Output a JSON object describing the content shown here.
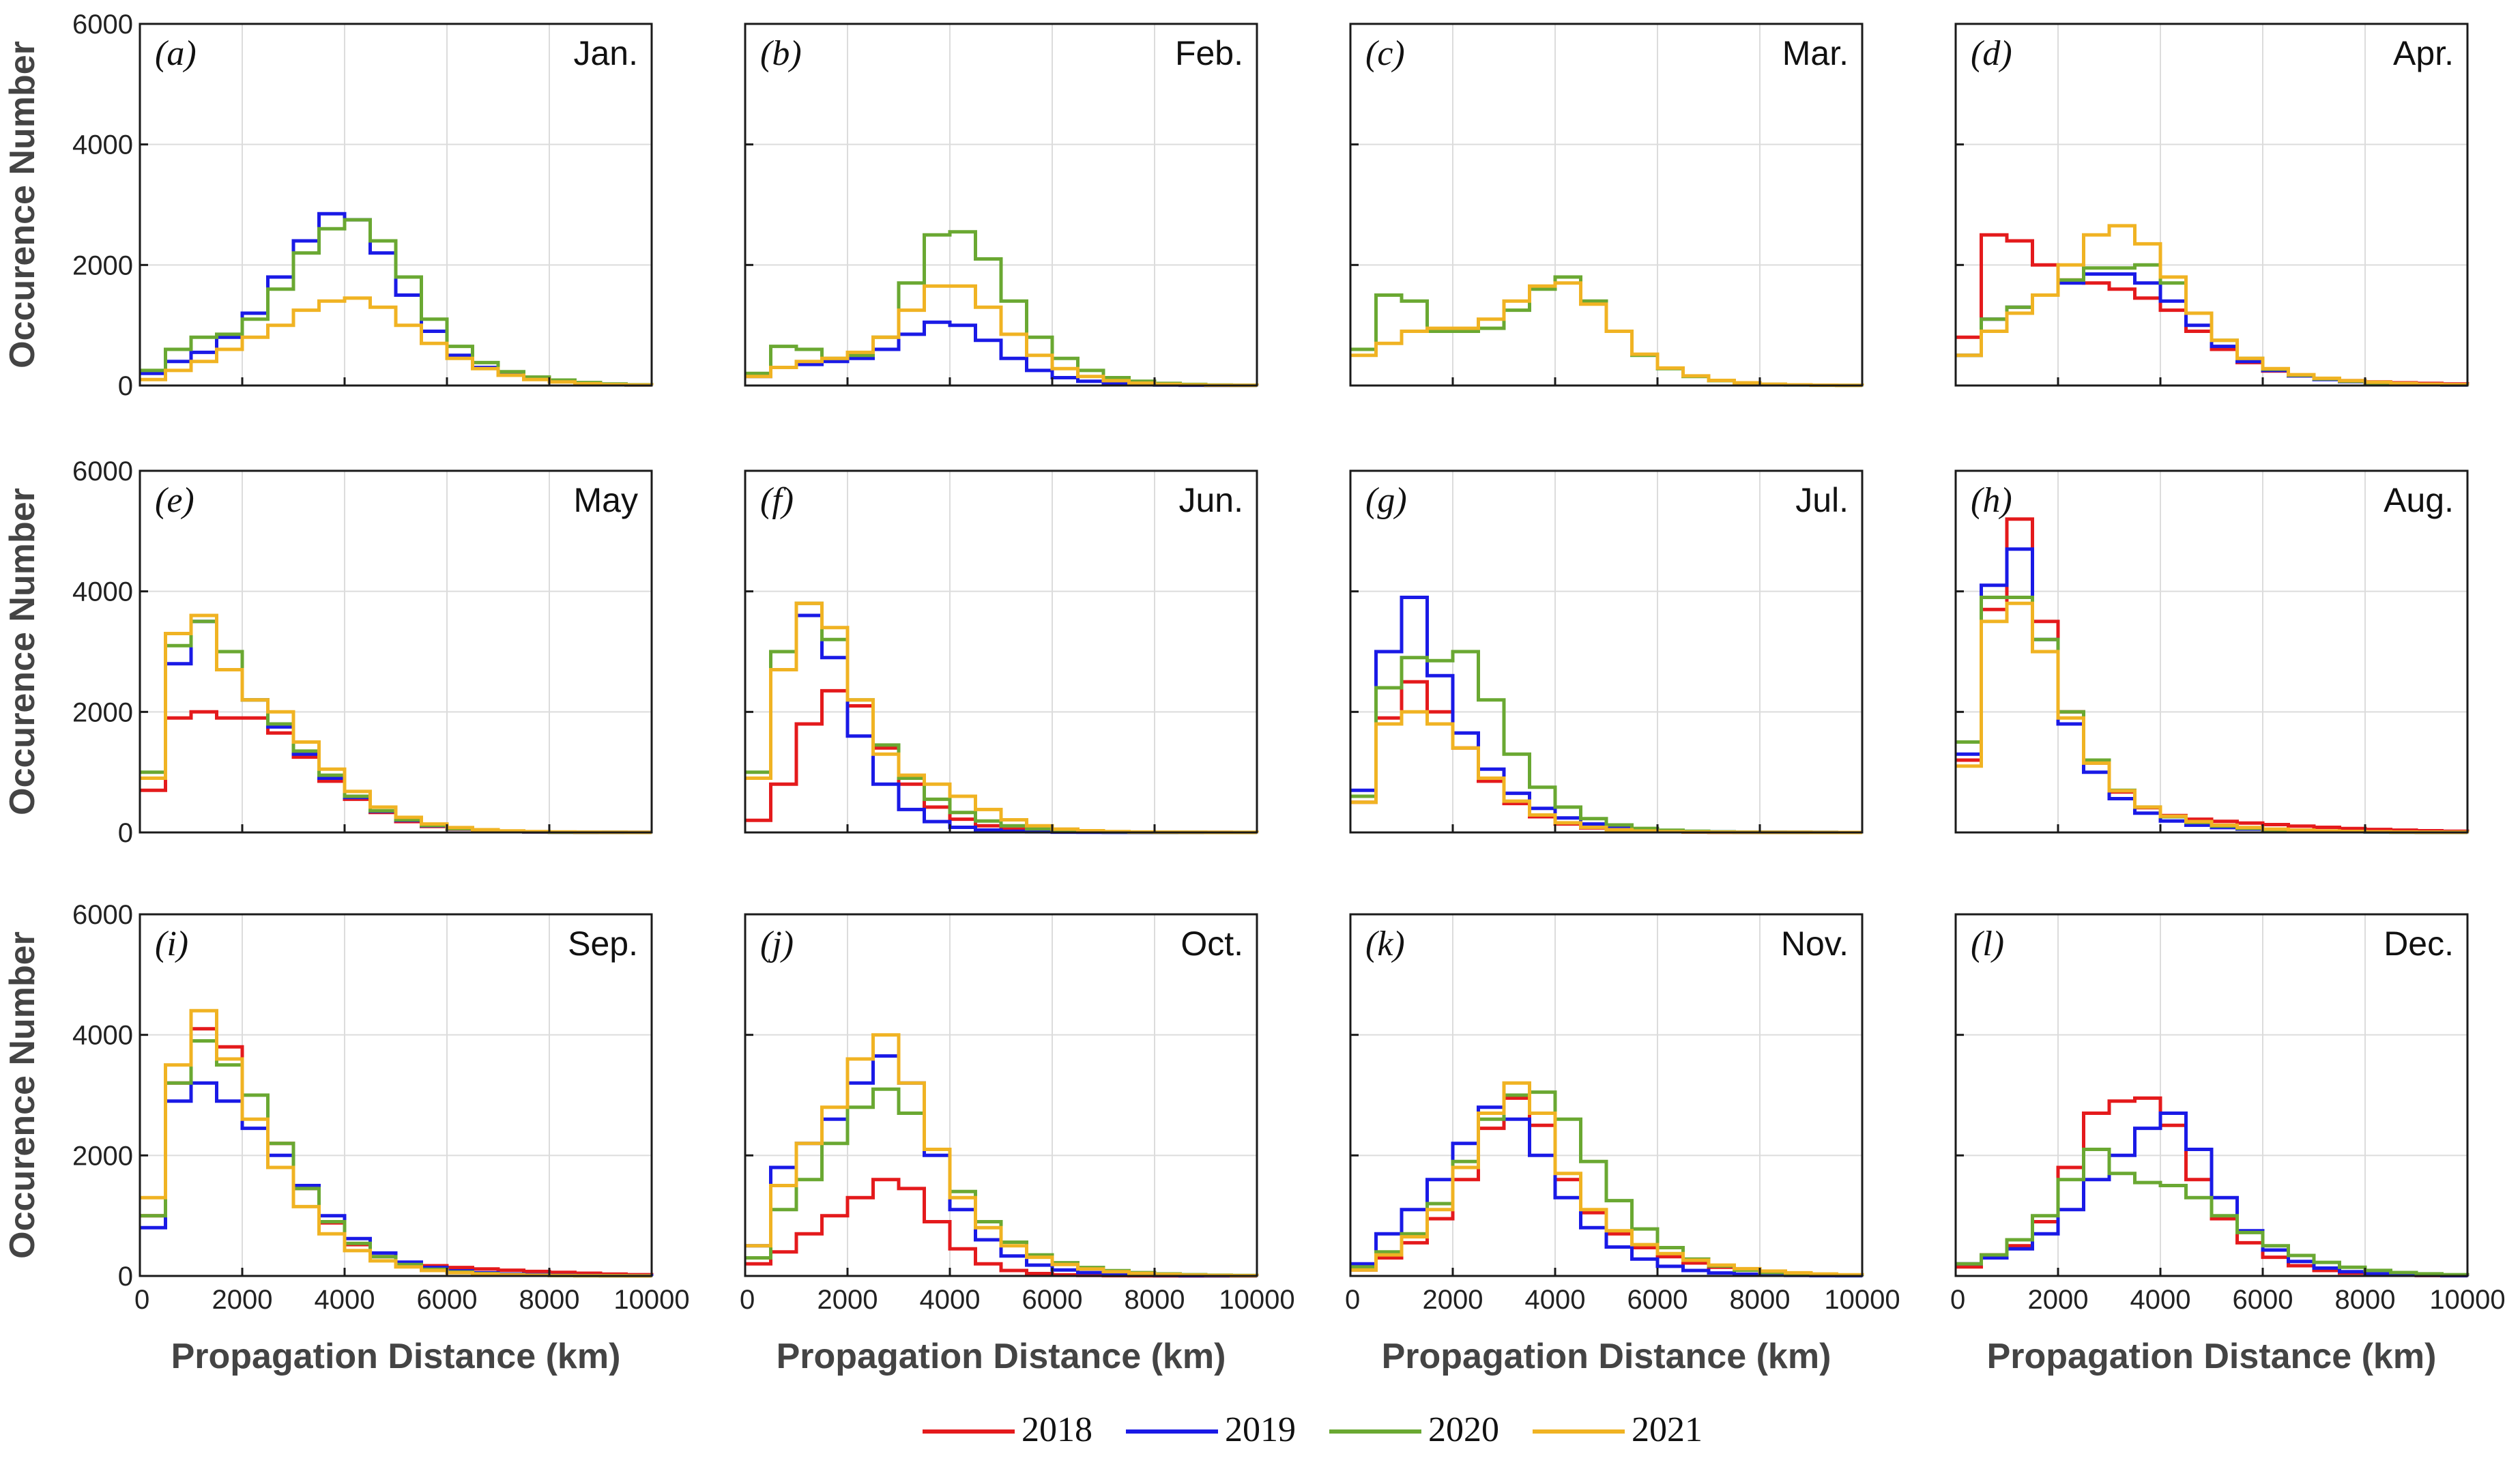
{
  "chart_data": {
    "type": "line",
    "layout": "3x4 grid of step histograms",
    "xlabel": "Propagation Distance (km)",
    "ylabel": "Occurence Number",
    "xlim": [
      0,
      10000
    ],
    "ylim": [
      0,
      6000
    ],
    "xticks": [
      0,
      2000,
      4000,
      6000,
      8000,
      10000
    ],
    "yticks": [
      0,
      2000,
      4000,
      6000
    ],
    "x": [
      0,
      500,
      1000,
      1500,
      2000,
      2500,
      3000,
      3500,
      4000,
      4500,
      5000,
      5500,
      6000,
      6500,
      7000,
      7500,
      8000,
      8500,
      9000,
      9500,
      10000
    ],
    "legend": [
      {
        "name": "2018",
        "color": "#e41a1c"
      },
      {
        "name": "2019",
        "color": "#1a1ae6"
      },
      {
        "name": "2020",
        "color": "#6aa832"
      },
      {
        "name": "2021",
        "color": "#f0b323"
      }
    ],
    "panels": [
      {
        "letter": "(a)",
        "month": "Jan.",
        "series": {
          "2019": [
            200,
            400,
            550,
            800,
            1200,
            1800,
            2400,
            2850,
            2750,
            2200,
            1500,
            900,
            500,
            300,
            180,
            110,
            70,
            40,
            20,
            10,
            5
          ],
          "2020": [
            250,
            600,
            800,
            850,
            1100,
            1600,
            2200,
            2600,
            2750,
            2400,
            1800,
            1100,
            650,
            380,
            230,
            140,
            90,
            50,
            25,
            12,
            6
          ],
          "2021": [
            100,
            250,
            400,
            600,
            800,
            1000,
            1250,
            1400,
            1450,
            1300,
            1000,
            700,
            450,
            280,
            170,
            100,
            60,
            30,
            15,
            8,
            4
          ]
        }
      },
      {
        "letter": "(b)",
        "month": "Feb.",
        "series": {
          "2019": [
            150,
            300,
            350,
            400,
            450,
            600,
            850,
            1050,
            1000,
            750,
            450,
            250,
            130,
            70,
            35,
            18,
            9,
            5,
            3,
            2,
            1
          ],
          "2020": [
            200,
            650,
            600,
            450,
            500,
            800,
            1700,
            2500,
            2550,
            2100,
            1400,
            800,
            450,
            250,
            130,
            70,
            35,
            18,
            9,
            5,
            2
          ],
          "2021": [
            150,
            300,
            400,
            450,
            550,
            800,
            1250,
            1650,
            1650,
            1300,
            850,
            500,
            280,
            150,
            80,
            40,
            20,
            10,
            5,
            3,
            1
          ]
        }
      },
      {
        "letter": "(c)",
        "month": "Mar.",
        "series": {
          "2020": [
            600,
            1500,
            1400,
            900,
            900,
            950,
            1250,
            1600,
            1800,
            1400,
            900,
            500,
            280,
            150,
            80,
            40,
            20,
            10,
            5,
            3,
            1
          ],
          "2021": [
            500,
            700,
            900,
            950,
            950,
            1100,
            1400,
            1650,
            1700,
            1350,
            900,
            520,
            290,
            160,
            85,
            45,
            22,
            11,
            6,
            3,
            1
          ]
        }
      },
      {
        "letter": "(d)",
        "month": "Apr.",
        "series": {
          "2018": [
            800,
            2500,
            2400,
            2000,
            1750,
            1700,
            1600,
            1450,
            1250,
            900,
            600,
            380,
            240,
            160,
            110,
            80,
            60,
            45,
            35,
            25,
            15
          ],
          "2019": [
            500,
            1100,
            1300,
            1500,
            1700,
            1850,
            1850,
            1700,
            1400,
            1000,
            650,
            400,
            250,
            160,
            100,
            65,
            40,
            25,
            15,
            9,
            5
          ],
          "2020": [
            500,
            1100,
            1300,
            1500,
            1750,
            1950,
            1950,
            2000,
            1700,
            1200,
            750,
            450,
            270,
            170,
            110,
            70,
            45,
            28,
            17,
            10,
            5
          ],
          "2021": [
            500,
            900,
            1200,
            1500,
            2000,
            2500,
            2650,
            2350,
            1800,
            1200,
            750,
            450,
            280,
            180,
            120,
            80,
            55,
            35,
            22,
            14,
            8
          ]
        }
      },
      {
        "letter": "(e)",
        "month": "May",
        "series": {
          "2018": [
            700,
            1900,
            2000,
            1900,
            1900,
            1650,
            1250,
            850,
            550,
            330,
            180,
            100,
            55,
            30,
            16,
            9,
            5,
            3,
            2,
            1,
            1
          ],
          "2019": [
            900,
            2800,
            3500,
            3000,
            2200,
            1750,
            1300,
            900,
            580,
            350,
            200,
            110,
            60,
            32,
            17,
            9,
            5,
            3,
            2,
            1,
            1
          ],
          "2020": [
            1000,
            3100,
            3500,
            3000,
            2200,
            1800,
            1350,
            950,
            600,
            360,
            210,
            115,
            62,
            34,
            18,
            10,
            5,
            3,
            2,
            1,
            1
          ],
          "2021": [
            900,
            3300,
            3600,
            2700,
            2200,
            2000,
            1500,
            1050,
            680,
            420,
            250,
            140,
            80,
            45,
            25,
            14,
            8,
            4,
            2,
            1,
            1
          ]
        }
      },
      {
        "letter": "(f)",
        "month": "Jun.",
        "series": {
          "2018": [
            200,
            800,
            1800,
            2350,
            2100,
            1400,
            800,
            420,
            220,
            110,
            55,
            28,
            14,
            7,
            4,
            2,
            1,
            1,
            1,
            0,
            0
          ],
          "2019": [
            900,
            2700,
            3600,
            2900,
            1600,
            800,
            380,
            180,
            85,
            40,
            20,
            10,
            5,
            2,
            1,
            1,
            0,
            0,
            0,
            0,
            0
          ],
          "2020": [
            1000,
            3000,
            3800,
            3200,
            2200,
            1450,
            900,
            550,
            330,
            190,
            110,
            60,
            32,
            17,
            9,
            5,
            3,
            2,
            1,
            1,
            0
          ],
          "2021": [
            900,
            2700,
            3800,
            3400,
            2200,
            1300,
            950,
            800,
            600,
            380,
            210,
            110,
            55,
            28,
            14,
            7,
            4,
            2,
            1,
            1,
            0
          ]
        }
      },
      {
        "letter": "(g)",
        "month": "Jul.",
        "series": {
          "2018": [
            500,
            1900,
            2500,
            2000,
            1400,
            850,
            480,
            260,
            140,
            75,
            40,
            21,
            11,
            6,
            3,
            2,
            1,
            1,
            0,
            0,
            0
          ],
          "2019": [
            700,
            3000,
            3900,
            2600,
            1650,
            1050,
            650,
            400,
            240,
            140,
            80,
            45,
            25,
            14,
            8,
            4,
            2,
            1,
            1,
            0,
            0
          ],
          "2020": [
            600,
            2400,
            2900,
            2850,
            3000,
            2200,
            1300,
            750,
            420,
            230,
            125,
            67,
            36,
            19,
            10,
            5,
            3,
            2,
            1,
            0,
            0
          ],
          "2021": [
            500,
            1800,
            2000,
            1800,
            1400,
            900,
            520,
            290,
            160,
            85,
            45,
            24,
            13,
            7,
            4,
            2,
            1,
            1,
            0,
            0,
            0
          ]
        }
      },
      {
        "letter": "(h)",
        "month": "Aug.",
        "series": {
          "2018": [
            1200,
            3700,
            5200,
            3500,
            2000,
            1150,
            670,
            410,
            280,
            220,
            185,
            155,
            130,
            105,
            85,
            65,
            50,
            38,
            28,
            20,
            14
          ],
          "2019": [
            1300,
            4100,
            4700,
            3200,
            1800,
            1000,
            560,
            320,
            190,
            120,
            80,
            55,
            38,
            26,
            18,
            12,
            8,
            5,
            3,
            2,
            1
          ],
          "2020": [
            1500,
            3900,
            3900,
            3200,
            2000,
            1200,
            700,
            420,
            260,
            165,
            105,
            68,
            45,
            30,
            20,
            13,
            8,
            5,
            3,
            2,
            1
          ],
          "2021": [
            1100,
            3500,
            3800,
            3000,
            1900,
            1150,
            690,
            420,
            270,
            180,
            120,
            82,
            56,
            38,
            26,
            17,
            11,
            7,
            4,
            3,
            2
          ]
        }
      },
      {
        "letter": "(i)",
        "month": "Sep.",
        "series": {
          "2018": [
            1000,
            3200,
            4100,
            3800,
            3000,
            2200,
            1450,
            880,
            520,
            320,
            220,
            170,
            140,
            115,
            95,
            75,
            60,
            45,
            32,
            22,
            14
          ],
          "2019": [
            800,
            2900,
            3200,
            2900,
            2450,
            2000,
            1500,
            1000,
            620,
            380,
            230,
            140,
            85,
            52,
            32,
            19,
            11,
            7,
            4,
            2,
            1
          ],
          "2020": [
            1000,
            3200,
            3900,
            3500,
            3000,
            2200,
            1450,
            900,
            540,
            320,
            190,
            110,
            65,
            38,
            22,
            13,
            7,
            4,
            2,
            1,
            1
          ],
          "2021": [
            1300,
            3500,
            4400,
            3600,
            2600,
            1800,
            1150,
            700,
            420,
            250,
            150,
            90,
            54,
            32,
            19,
            11,
            7,
            4,
            2,
            1,
            1
          ]
        }
      },
      {
        "letter": "(j)",
        "month": "Oct.",
        "series": {
          "2018": [
            200,
            400,
            700,
            1000,
            1300,
            1600,
            1450,
            900,
            450,
            200,
            90,
            40,
            18,
            8,
            4,
            2,
            1,
            0,
            0,
            0,
            0
          ],
          "2019": [
            500,
            1800,
            2200,
            2600,
            3200,
            3650,
            3200,
            2000,
            1100,
            600,
            330,
            180,
            100,
            55,
            30,
            16,
            9,
            5,
            3,
            2,
            1
          ],
          "2020": [
            300,
            1100,
            1600,
            2200,
            2800,
            3100,
            2700,
            2100,
            1400,
            900,
            560,
            350,
            220,
            140,
            88,
            55,
            34,
            21,
            13,
            8,
            5
          ],
          "2021": [
            500,
            1500,
            2200,
            2800,
            3600,
            4000,
            3200,
            2100,
            1300,
            800,
            500,
            310,
            190,
            115,
            70,
            42,
            25,
            15,
            9,
            5,
            3
          ]
        }
      },
      {
        "letter": "(k)",
        "month": "Nov.",
        "series": {
          "2019": [
            200,
            700,
            1100,
            1600,
            2200,
            2800,
            2600,
            2000,
            1300,
            800,
            480,
            280,
            160,
            90,
            50,
            28,
            15,
            8,
            4,
            2,
            1
          ],
          "2020": [
            150,
            400,
            700,
            1200,
            1900,
            2600,
            3000,
            3050,
            2600,
            1900,
            1250,
            780,
            470,
            280,
            165,
            95,
            55,
            32,
            18,
            10,
            5
          ],
          "2021": [
            100,
            350,
            650,
            1100,
            1800,
            2700,
            3200,
            2700,
            1700,
            1100,
            750,
            520,
            370,
            260,
            180,
            120,
            80,
            52,
            33,
            20,
            12
          ],
          "2018": [
            100,
            300,
            550,
            950,
            1600,
            2450,
            2950,
            2500,
            1600,
            1050,
            700,
            470,
            320,
            215,
            145,
            95,
            60,
            38,
            23,
            14,
            8
          ]
        }
      },
      {
        "letter": "(l)",
        "month": "Dec.",
        "series": {
          "2018": [
            150,
            350,
            500,
            900,
            1800,
            2700,
            2900,
            2950,
            2500,
            1600,
            950,
            550,
            310,
            170,
            90,
            48,
            25,
            13,
            7,
            4,
            2
          ],
          "2019": [
            200,
            300,
            450,
            700,
            1100,
            1600,
            2000,
            2450,
            2700,
            2100,
            1300,
            750,
            430,
            240,
            130,
            70,
            37,
            19,
            10,
            5,
            3
          ],
          "2020": [
            200,
            350,
            600,
            1000,
            1600,
            2100,
            1700,
            1550,
            1500,
            1300,
            1000,
            720,
            500,
            340,
            225,
            145,
            92,
            57,
            35,
            21,
            12
          ]
        }
      }
    ]
  }
}
